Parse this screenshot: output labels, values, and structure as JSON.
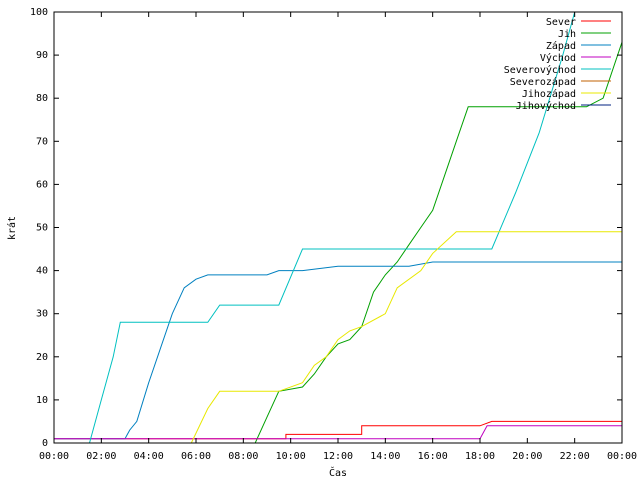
{
  "chart_data": {
    "type": "line",
    "title": "",
    "xlabel": "Čas",
    "ylabel": "krát",
    "xlim": [
      0,
      24
    ],
    "ylim": [
      0,
      100
    ],
    "x_ticks": [
      "00:00",
      "02:00",
      "04:00",
      "06:00",
      "08:00",
      "10:00",
      "12:00",
      "14:00",
      "16:00",
      "18:00",
      "20:00",
      "22:00",
      "00:00"
    ],
    "y_ticks": [
      0,
      10,
      20,
      30,
      40,
      50,
      60,
      70,
      80,
      90,
      100
    ],
    "grid": false,
    "legend_position": "top-right",
    "series": [
      {
        "name": "Sever",
        "color": "#ff0000",
        "points": [
          [
            0,
            1
          ],
          [
            9.8,
            1
          ],
          [
            9.8,
            2
          ],
          [
            13.0,
            2
          ],
          [
            13.0,
            4
          ],
          [
            18.0,
            4
          ],
          [
            18.5,
            5
          ],
          [
            24,
            5
          ]
        ]
      },
      {
        "name": "Jih",
        "color": "#00a000",
        "points": [
          [
            0,
            0
          ],
          [
            8.5,
            0
          ],
          [
            9.0,
            6
          ],
          [
            9.5,
            12
          ],
          [
            10.5,
            13
          ],
          [
            11.0,
            16
          ],
          [
            11.5,
            20
          ],
          [
            12.0,
            23
          ],
          [
            12.5,
            24
          ],
          [
            13.0,
            27
          ],
          [
            13.5,
            35
          ],
          [
            14.0,
            39
          ],
          [
            14.5,
            42
          ],
          [
            15.0,
            46
          ],
          [
            15.5,
            50
          ],
          [
            16.0,
            54
          ],
          [
            16.5,
            62
          ],
          [
            17.0,
            70
          ],
          [
            17.5,
            78
          ],
          [
            18.0,
            78
          ],
          [
            20.0,
            78
          ],
          [
            22.5,
            78
          ],
          [
            23.2,
            80
          ],
          [
            24,
            93
          ]
        ]
      },
      {
        "name": "Západ",
        "color": "#0080c0",
        "points": [
          [
            0,
            1
          ],
          [
            3.0,
            1
          ],
          [
            3.2,
            3
          ],
          [
            3.5,
            5
          ],
          [
            4.0,
            14
          ],
          [
            4.5,
            22
          ],
          [
            5.0,
            30
          ],
          [
            5.5,
            36
          ],
          [
            6.0,
            38
          ],
          [
            6.5,
            39
          ],
          [
            9.0,
            39
          ],
          [
            9.5,
            40
          ],
          [
            10.5,
            40
          ],
          [
            12.0,
            41
          ],
          [
            15.0,
            41
          ],
          [
            16.0,
            42
          ],
          [
            24,
            42
          ]
        ]
      },
      {
        "name": "Východ",
        "color": "#c000c0",
        "points": [
          [
            0,
            1
          ],
          [
            9.5,
            1
          ],
          [
            9.6,
            1
          ],
          [
            12.0,
            1
          ],
          [
            18.0,
            1
          ],
          [
            18.3,
            4
          ],
          [
            24,
            4
          ]
        ]
      },
      {
        "name": "Severovýchod",
        "color": "#00c0c0",
        "points": [
          [
            0,
            0
          ],
          [
            1.5,
            0
          ],
          [
            2.0,
            10
          ],
          [
            2.5,
            20
          ],
          [
            2.8,
            28
          ],
          [
            6.5,
            28
          ],
          [
            7.0,
            32
          ],
          [
            9.5,
            32
          ],
          [
            10.5,
            45
          ],
          [
            14.0,
            45
          ],
          [
            18.5,
            45
          ],
          [
            19.5,
            58
          ],
          [
            20.5,
            72
          ],
          [
            21.5,
            90
          ],
          [
            22.0,
            100
          ]
        ]
      },
      {
        "name": "Severozápad",
        "color": "#c06000",
        "points": [
          [
            0,
            0
          ],
          [
            24,
            0
          ]
        ]
      },
      {
        "name": "Jihozápad",
        "color": "#e8e800",
        "points": [
          [
            0,
            0
          ],
          [
            5.8,
            0
          ],
          [
            6.5,
            8
          ],
          [
            7.0,
            12
          ],
          [
            9.5,
            12
          ],
          [
            10.5,
            14
          ],
          [
            11.0,
            18
          ],
          [
            11.5,
            20
          ],
          [
            12.0,
            24
          ],
          [
            12.5,
            26
          ],
          [
            13.0,
            27
          ],
          [
            14.0,
            30
          ],
          [
            14.5,
            36
          ],
          [
            15.5,
            40
          ],
          [
            16.0,
            44
          ],
          [
            17.0,
            49
          ],
          [
            24,
            49
          ]
        ]
      },
      {
        "name": "Jihovýchod",
        "color": "#002080",
        "points": [
          [
            0,
            0
          ],
          [
            24,
            0
          ]
        ]
      }
    ]
  }
}
